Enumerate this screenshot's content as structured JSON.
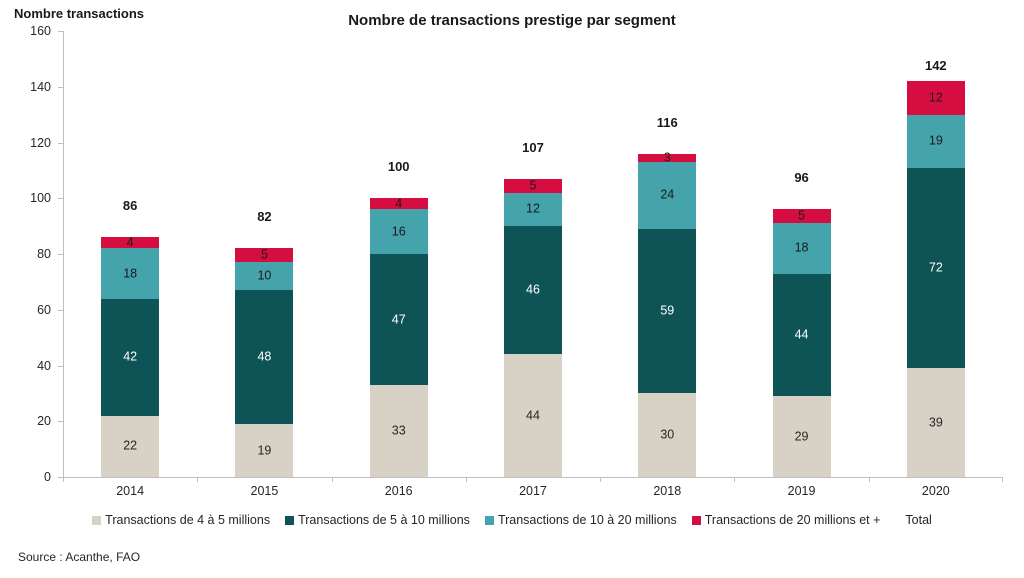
{
  "page": {
    "y_axis_title": "Nombre transactions",
    "title": "Nombre de transactions prestige par segment",
    "source": "Source : Acanthe, FAO"
  },
  "chart_data": {
    "type": "bar",
    "stacked": true,
    "title": "Nombre de transactions prestige par segment",
    "ylabel": "Nombre transactions",
    "xlabel": "",
    "categories": [
      "2014",
      "2015",
      "2016",
      "2017",
      "2018",
      "2019",
      "2020"
    ],
    "series": [
      {
        "name": "Transactions de 4 à 5 millions",
        "color": "#D8D2C6",
        "label_color": "#262626",
        "values": [
          22,
          19,
          33,
          44,
          30,
          29,
          39
        ]
      },
      {
        "name": "Transactions de 5 à 10 millions",
        "color": "#0E5457",
        "label_color": "#FFFFFF",
        "values": [
          42,
          48,
          47,
          46,
          59,
          44,
          72
        ]
      },
      {
        "name": "Transactions de 10 à 20 millions",
        "color": "#44A3AB",
        "label_color": "#1A1A1A",
        "values": [
          18,
          10,
          16,
          12,
          24,
          18,
          19
        ]
      },
      {
        "name": "Transactions de 20 millions et +",
        "color": "#D60D41",
        "label_color": "#1A1A1A",
        "values": [
          4,
          5,
          4,
          5,
          3,
          5,
          12
        ]
      }
    ],
    "totals": {
      "name": "Total",
      "values": [
        86,
        82,
        100,
        107,
        116,
        96,
        142
      ]
    },
    "ylim": [
      0,
      160
    ],
    "yticks": [
      0,
      20,
      40,
      60,
      80,
      100,
      120,
      140,
      160
    ],
    "grid": false,
    "legend_position": "bottom",
    "axis_color": "#C0C0C0"
  }
}
